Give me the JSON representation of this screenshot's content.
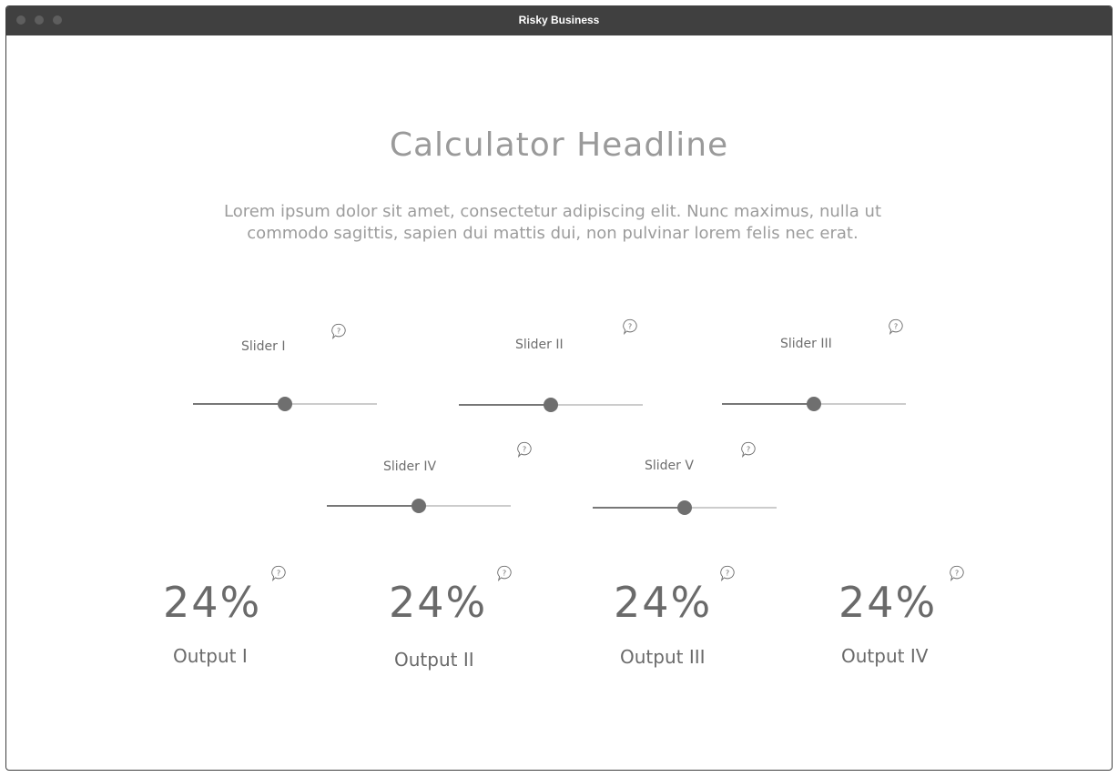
{
  "window": {
    "title": "Risky Business"
  },
  "page": {
    "headline": "Calculator Headline",
    "lead": "Lorem ipsum dolor sit amet, consectetur adipiscing elit. Nunc maximus, nulla ut commodo sagittis, sapien dui mattis dui, non pulvinar lorem felis nec erat."
  },
  "sliders": [
    {
      "label": "Slider I",
      "value": 0.5
    },
    {
      "label": "Slider II",
      "value": 0.5
    },
    {
      "label": "Slider III",
      "value": 0.5
    },
    {
      "label": "Slider IV",
      "value": 0.5
    },
    {
      "label": "Slider V",
      "value": 0.5
    }
  ],
  "outputs": [
    {
      "value": "24%",
      "label": "Output I"
    },
    {
      "value": "24%",
      "label": "Output II"
    },
    {
      "value": "24%",
      "label": "Output III"
    },
    {
      "value": "24%",
      "label": "Output IV"
    }
  ],
  "icons": {
    "help": "question-bubble-icon",
    "window_dots": "window-control-dot"
  },
  "colors": {
    "titlebar": "#404040",
    "text_muted": "#9a9a9a",
    "control": "#6f6f6f",
    "track": "#cccccc"
  }
}
